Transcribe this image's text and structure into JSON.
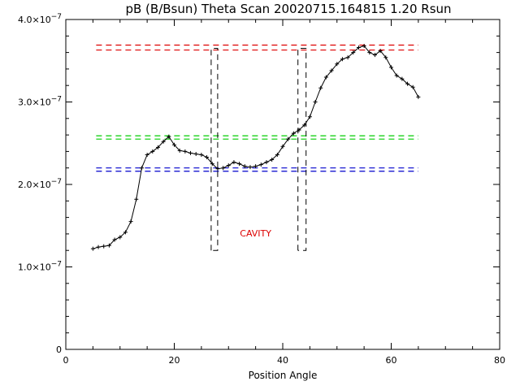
{
  "chart_data": {
    "type": "line",
    "title": "pB (B/Bsun) Theta Scan 20020715.164815 1.20 Rsun",
    "xlabel": "Position Angle",
    "ylabel": "",
    "xlim": [
      0,
      80
    ],
    "ylim": [
      0,
      4e-07
    ],
    "x_ticks": [
      0,
      20,
      40,
      60,
      80
    ],
    "x_tick_labels": [
      "0",
      "20",
      "40",
      "60",
      "80"
    ],
    "y_ticks": [
      {
        "value": 0,
        "mantissa": "0",
        "exp": ""
      },
      {
        "value": 1e-07,
        "mantissa": "1.0×10",
        "exp": "−7"
      },
      {
        "value": 2e-07,
        "mantissa": "2.0×10",
        "exp": "−7"
      },
      {
        "value": 3e-07,
        "mantissa": "3.0×10",
        "exp": "−7"
      },
      {
        "value": 4e-07,
        "mantissa": "4.0×10",
        "exp": "−7"
      }
    ],
    "grid": false,
    "series": [
      {
        "color": "#000000",
        "marker": "plus",
        "x": [
          5,
          6,
          7,
          8,
          9,
          10,
          11,
          12,
          13,
          14,
          15,
          16,
          17,
          18,
          19,
          20,
          21,
          22,
          23,
          24,
          25,
          26,
          27,
          28,
          29,
          30,
          31,
          32,
          33,
          34,
          35,
          36,
          37,
          38,
          39,
          40,
          41,
          42,
          43,
          44,
          45,
          46,
          47,
          48,
          49,
          50,
          51,
          52,
          53,
          54,
          55,
          56,
          57,
          58,
          59,
          60,
          61,
          62,
          63,
          64,
          65
        ],
        "y": [
          1.22e-07,
          1.24e-07,
          1.25e-07,
          1.26e-07,
          1.33e-07,
          1.36e-07,
          1.42e-07,
          1.55e-07,
          1.82e-07,
          2.2e-07,
          2.36e-07,
          2.4e-07,
          2.45e-07,
          2.52e-07,
          2.58e-07,
          2.48e-07,
          2.41e-07,
          2.4e-07,
          2.38e-07,
          2.37e-07,
          2.36e-07,
          2.33e-07,
          2.25e-07,
          2.19e-07,
          2.2e-07,
          2.23e-07,
          2.27e-07,
          2.25e-07,
          2.22e-07,
          2.21e-07,
          2.22e-07,
          2.24e-07,
          2.27e-07,
          2.3e-07,
          2.36e-07,
          2.46e-07,
          2.55e-07,
          2.62e-07,
          2.66e-07,
          2.72e-07,
          2.82e-07,
          3e-07,
          3.17e-07,
          3.3e-07,
          3.38e-07,
          3.46e-07,
          3.52e-07,
          3.54e-07,
          3.6e-07,
          3.66e-07,
          3.68e-07,
          3.6e-07,
          3.57e-07,
          3.62e-07,
          3.54e-07,
          3.42e-07,
          3.32e-07,
          3.28e-07,
          3.22e-07,
          3.18e-07,
          3.06e-07
        ]
      }
    ],
    "reference_lines": [
      {
        "color": "#dd0000",
        "dash": true,
        "y": 3.69e-07,
        "x": [
          5,
          65
        ]
      },
      {
        "color": "#dd0000",
        "dash": true,
        "y": 3.63e-07,
        "x": [
          5,
          65
        ]
      },
      {
        "color": "#00cc00",
        "dash": true,
        "y": 2.59e-07,
        "x": [
          5,
          65
        ]
      },
      {
        "color": "#00cc00",
        "dash": true,
        "y": 2.55e-07,
        "x": [
          5,
          65
        ]
      },
      {
        "color": "#0000cc",
        "dash": true,
        "y": 2.2e-07,
        "x": [
          5,
          65
        ]
      },
      {
        "color": "#0000cc",
        "dash": true,
        "y": 2.16e-07,
        "x": [
          5,
          65
        ]
      }
    ],
    "cavity_boxes": [
      {
        "x1": 26.8,
        "x2": 28.0,
        "y_top": 3.65e-07,
        "y_bottom": 1.2e-07
      },
      {
        "x1": 42.8,
        "x2": 44.3,
        "y_top": 3.65e-07,
        "y_bottom": 1.2e-07
      }
    ],
    "annotations": [
      {
        "text": "CAVITY",
        "x": 35,
        "y": 1.37e-07,
        "color": "#dd0000"
      }
    ]
  }
}
